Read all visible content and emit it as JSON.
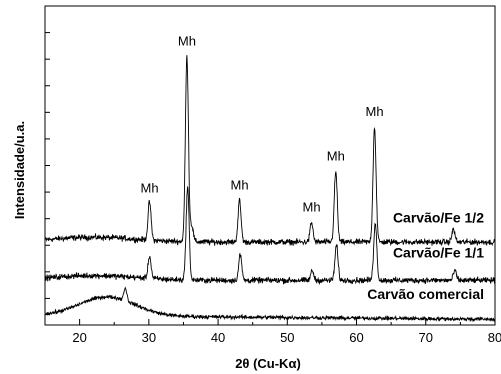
{
  "chart_data": {
    "type": "line",
    "xlabel": "2θ (Cu-Kα)",
    "ylabel": "Intensidade/u.a.",
    "xlim": [
      15,
      80
    ],
    "x_ticks": [
      20,
      30,
      40,
      50,
      60,
      70,
      80
    ],
    "y_tick_labels": "none",
    "series": [
      {
        "name": "Carvão/Fe 1/2",
        "baseline": 0.27,
        "peaks": [
          {
            "x": 30.1,
            "height": 0.12
          },
          {
            "x": 35.5,
            "height": 0.58
          },
          {
            "x": 36.2,
            "height": 0.05
          },
          {
            "x": 43.1,
            "height": 0.13
          },
          {
            "x": 53.5,
            "height": 0.06
          },
          {
            "x": 57.0,
            "height": 0.22
          },
          {
            "x": 62.6,
            "height": 0.36
          },
          {
            "x": 74.0,
            "height": 0.04
          }
        ]
      },
      {
        "name": "Carvão/Fe 1/1",
        "baseline": 0.15,
        "peaks": [
          {
            "x": 30.1,
            "height": 0.07
          },
          {
            "x": 35.6,
            "height": 0.29
          },
          {
            "x": 43.2,
            "height": 0.08
          },
          {
            "x": 53.6,
            "height": 0.03
          },
          {
            "x": 57.1,
            "height": 0.11
          },
          {
            "x": 62.7,
            "height": 0.18
          },
          {
            "x": 74.2,
            "height": 0.03
          }
        ]
      },
      {
        "name": "Carvão comercial",
        "baseline": 0.03,
        "broad_hump": {
          "x": 24,
          "height": 0.06
        },
        "peaks": [
          {
            "x": 26.6,
            "height": 0.04
          }
        ]
      }
    ],
    "annotations": [
      {
        "text": "Mh",
        "x": 30.1
      },
      {
        "text": "Mh",
        "x": 35.5
      },
      {
        "text": "Mh",
        "x": 43.1
      },
      {
        "text": "Mh",
        "x": 53.5
      },
      {
        "text": "Mh",
        "x": 57.0
      },
      {
        "text": "Mh",
        "x": 62.6
      }
    ]
  }
}
